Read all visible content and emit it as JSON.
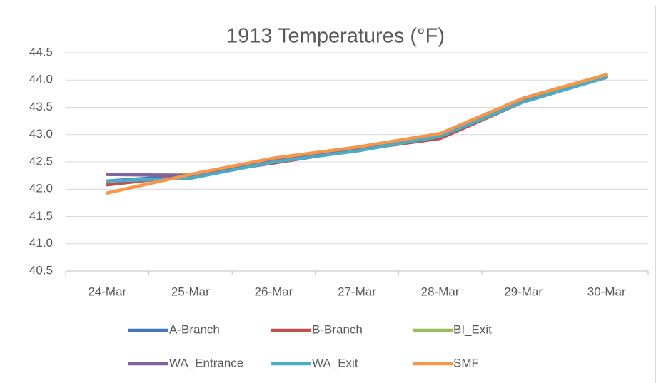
{
  "chart_data": {
    "type": "line",
    "title": "1913 Temperatures (°F)",
    "categories": [
      "24-Mar",
      "25-Mar",
      "26-Mar",
      "27-Mar",
      "28-Mar",
      "29-Mar",
      "30-Mar"
    ],
    "series": [
      {
        "name": "A-Branch",
        "color": "#4472c4",
        "values": [
          42.15,
          42.25,
          42.52,
          42.72,
          42.97,
          43.6,
          44.05
        ]
      },
      {
        "name": "B-Branch",
        "color": "#c0504d",
        "values": [
          42.08,
          42.25,
          42.48,
          42.72,
          42.93,
          43.6,
          44.05
        ]
      },
      {
        "name": "BI_Exit",
        "color": "#9bbb59",
        "values": [
          42.27,
          42.27,
          42.52,
          42.73,
          42.97,
          43.62,
          44.05
        ]
      },
      {
        "name": "WA_Entrance",
        "color": "#8064a2",
        "values": [
          42.27,
          42.25,
          42.52,
          42.73,
          42.97,
          43.62,
          44.05
        ]
      },
      {
        "name": "WA_Exit",
        "color": "#4bacc6",
        "values": [
          42.15,
          42.2,
          42.5,
          42.7,
          42.97,
          43.6,
          44.05
        ]
      },
      {
        "name": "SMF",
        "color": "#f79646",
        "values": [
          41.93,
          42.27,
          42.57,
          42.77,
          43.02,
          43.67,
          44.1
        ]
      }
    ],
    "ylim": [
      40.5,
      44.5
    ],
    "yticks": [
      40.5,
      {
        "value": 41,
        "label": "41.0"
      },
      41.5,
      {
        "value": 42,
        "label": "42.0"
      },
      42.5,
      {
        "value": 43,
        "label": "43.0"
      },
      43.5,
      {
        "value": 44,
        "label": "44.0"
      },
      44.5
    ],
    "grid": true,
    "legend": "bottom"
  }
}
